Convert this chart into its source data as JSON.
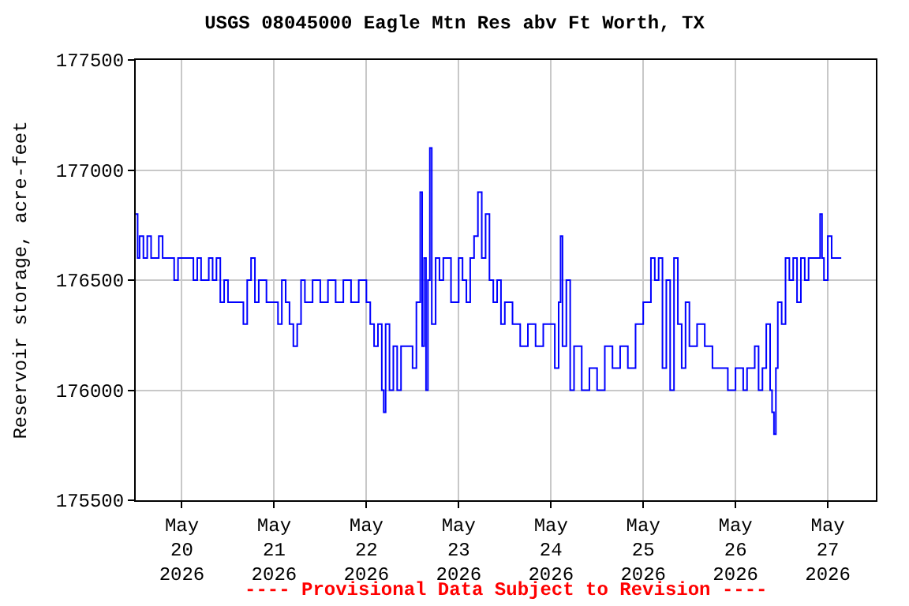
{
  "chart_data": {
    "type": "step",
    "title": "USGS 08045000 Eagle Mtn Res abv Ft Worth, TX",
    "ylabel": "Reservoir storage, acre-feet",
    "annotations": [
      "---- Provisional Data Subject to Revision ----"
    ],
    "x": [
      "2026-05-19T12:00",
      "2026-05-19T12:30",
      "2026-05-19T13:00",
      "2026-05-19T14:00",
      "2026-05-19T15:00",
      "2026-05-19T16:00",
      "2026-05-19T18:00",
      "2026-05-19T19:00",
      "2026-05-19T21:00",
      "2026-05-19T22:00",
      "2026-05-19T23:00",
      "2026-05-20T02:00",
      "2026-05-20T03:00",
      "2026-05-20T04:00",
      "2026-05-20T05:00",
      "2026-05-20T07:00",
      "2026-05-20T08:00",
      "2026-05-20T09:00",
      "2026-05-20T10:00",
      "2026-05-20T11:00",
      "2026-05-20T12:00",
      "2026-05-20T15:00",
      "2026-05-20T16:00",
      "2026-05-20T17:00",
      "2026-05-20T18:00",
      "2026-05-20T19:00",
      "2026-05-20T20:00",
      "2026-05-20T22:00",
      "2026-05-21T00:00",
      "2026-05-21T01:00",
      "2026-05-21T02:00",
      "2026-05-21T03:00",
      "2026-05-21T04:00",
      "2026-05-21T05:00",
      "2026-05-21T06:00",
      "2026-05-21T07:00",
      "2026-05-21T08:00",
      "2026-05-21T10:00",
      "2026-05-21T12:00",
      "2026-05-21T14:00",
      "2026-05-21T16:00",
      "2026-05-21T18:00",
      "2026-05-21T20:00",
      "2026-05-21T22:00",
      "2026-05-22T00:00",
      "2026-05-22T01:00",
      "2026-05-22T02:00",
      "2026-05-22T03:00",
      "2026-05-22T04:00",
      "2026-05-22T04:30",
      "2026-05-22T05:00",
      "2026-05-22T06:00",
      "2026-05-22T07:00",
      "2026-05-22T08:00",
      "2026-05-22T09:00",
      "2026-05-22T11:00",
      "2026-05-22T12:00",
      "2026-05-22T13:00",
      "2026-05-22T14:00",
      "2026-05-22T14:30",
      "2026-05-22T15:00",
      "2026-05-22T15:30",
      "2026-05-22T16:00",
      "2026-05-22T16:30",
      "2026-05-22T17:00",
      "2026-05-22T18:00",
      "2026-05-22T19:00",
      "2026-05-22T20:00",
      "2026-05-22T22:00",
      "2026-05-23T00:00",
      "2026-05-23T01:00",
      "2026-05-23T02:00",
      "2026-05-23T03:00",
      "2026-05-23T04:00",
      "2026-05-23T05:00",
      "2026-05-23T06:00",
      "2026-05-23T07:00",
      "2026-05-23T08:00",
      "2026-05-23T09:00",
      "2026-05-23T10:00",
      "2026-05-23T11:00",
      "2026-05-23T12:00",
      "2026-05-23T14:00",
      "2026-05-23T16:00",
      "2026-05-23T18:00",
      "2026-05-23T20:00",
      "2026-05-23T22:00",
      "2026-05-24T00:00",
      "2026-05-24T01:00",
      "2026-05-24T02:00",
      "2026-05-24T02:30",
      "2026-05-24T03:00",
      "2026-05-24T04:00",
      "2026-05-24T05:00",
      "2026-05-24T06:00",
      "2026-05-24T08:00",
      "2026-05-24T10:00",
      "2026-05-24T12:00",
      "2026-05-24T14:00",
      "2026-05-24T16:00",
      "2026-05-24T18:00",
      "2026-05-24T20:00",
      "2026-05-24T22:00",
      "2026-05-25T00:00",
      "2026-05-25T02:00",
      "2026-05-25T03:00",
      "2026-05-25T04:00",
      "2026-05-25T05:00",
      "2026-05-25T06:00",
      "2026-05-25T07:00",
      "2026-05-25T08:00",
      "2026-05-25T09:00",
      "2026-05-25T10:00",
      "2026-05-25T11:00",
      "2026-05-25T12:00",
      "2026-05-25T14:00",
      "2026-05-25T16:00",
      "2026-05-25T18:00",
      "2026-05-25T20:00",
      "2026-05-25T22:00",
      "2026-05-26T00:00",
      "2026-05-26T02:00",
      "2026-05-26T03:00",
      "2026-05-26T05:00",
      "2026-05-26T06:00",
      "2026-05-26T07:00",
      "2026-05-26T08:00",
      "2026-05-26T09:00",
      "2026-05-26T09:30",
      "2026-05-26T10:00",
      "2026-05-26T10:30",
      "2026-05-26T11:00",
      "2026-05-26T12:00",
      "2026-05-26T13:00",
      "2026-05-26T14:00",
      "2026-05-26T15:00",
      "2026-05-26T16:00",
      "2026-05-26T17:00",
      "2026-05-26T18:00",
      "2026-05-26T19:00",
      "2026-05-26T21:00",
      "2026-05-26T22:00",
      "2026-05-26T22:30",
      "2026-05-26T23:00",
      "2026-05-27T00:00",
      "2026-05-27T01:00",
      "2026-05-27T03:30"
    ],
    "series": [
      {
        "color": "#0000ff",
        "values": [
          176800,
          176600,
          176700,
          176600,
          176700,
          176600,
          176700,
          176600,
          176600,
          176500,
          176600,
          176600,
          176500,
          176600,
          176500,
          176600,
          176500,
          176600,
          176400,
          176500,
          176400,
          176400,
          176300,
          176500,
          176600,
          176400,
          176500,
          176400,
          176400,
          176300,
          176500,
          176400,
          176300,
          176200,
          176300,
          176500,
          176400,
          176500,
          176400,
          176500,
          176400,
          176500,
          176400,
          176500,
          176400,
          176300,
          176200,
          176300,
          176000,
          175900,
          176300,
          176000,
          176200,
          176000,
          176200,
          176200,
          176100,
          176400,
          176900,
          176200,
          176600,
          176000,
          176500,
          177100,
          176300,
          176600,
          176500,
          176600,
          176400,
          176600,
          176500,
          176400,
          176600,
          176700,
          176900,
          176600,
          176800,
          176500,
          176400,
          176500,
          176300,
          176400,
          176300,
          176200,
          176300,
          176200,
          176300,
          176300,
          176100,
          176400,
          176700,
          176200,
          176500,
          176000,
          176200,
          176000,
          176100,
          176000,
          176200,
          176100,
          176200,
          176100,
          176300,
          176400,
          176600,
          176500,
          176600,
          176100,
          176500,
          176000,
          176600,
          176300,
          176100,
          176400,
          176200,
          176300,
          176200,
          176100,
          176100,
          176000,
          176100,
          176000,
          176100,
          176200,
          176000,
          176100,
          176300,
          176000,
          175900,
          175800,
          176100,
          176400,
          176300,
          176600,
          176500,
          176600,
          176400,
          176600,
          176500,
          176600,
          176600,
          176800,
          176600,
          176500,
          176700,
          176600,
          176600
        ]
      }
    ],
    "xlim": [
      "2026-05-19T12:00",
      "2026-05-27T12:30"
    ],
    "xticks": [
      {
        "value": "2026-05-20",
        "label": "May\n20\n2026"
      },
      {
        "value": "2026-05-21",
        "label": "May\n21\n2026"
      },
      {
        "value": "2026-05-22",
        "label": "May\n22\n2026"
      },
      {
        "value": "2026-05-23",
        "label": "May\n23\n2026"
      },
      {
        "value": "2026-05-24",
        "label": "May\n24\n2026"
      },
      {
        "value": "2026-05-25",
        "label": "May\n25\n2026"
      },
      {
        "value": "2026-05-26",
        "label": "May\n26\n2026"
      },
      {
        "value": "2026-05-27",
        "label": "May\n27\n2026"
      }
    ],
    "ylim": [
      175500,
      177500
    ],
    "yticks": [
      175500,
      176000,
      176500,
      177000,
      177500
    ],
    "grid": true
  }
}
